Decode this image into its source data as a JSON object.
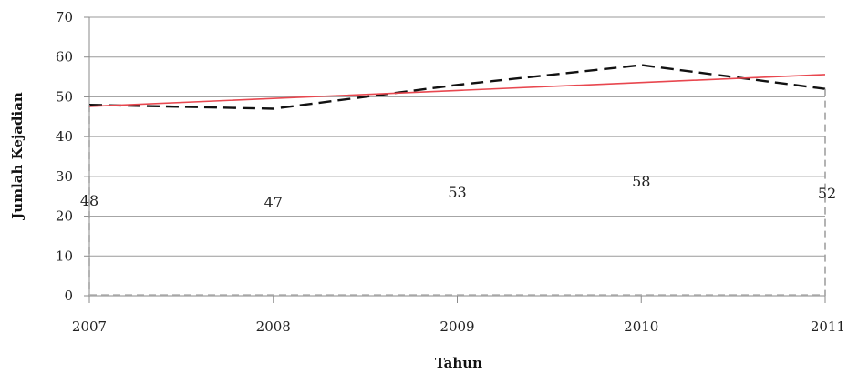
{
  "chart_data": {
    "type": "line",
    "title": "",
    "xlabel": "Tahun",
    "ylabel": "Jumlah Kejadian",
    "x": [
      "2007",
      "2008",
      "2009",
      "2010",
      "2011"
    ],
    "ylim": [
      0,
      70
    ],
    "yticks": [
      "0",
      "10",
      "20",
      "30",
      "40",
      "50",
      "60",
      "70"
    ],
    "grid": true,
    "legend": "none",
    "series": [
      {
        "style": "dashed",
        "color": "#111111",
        "values": [
          48,
          47,
          53,
          58,
          52
        ],
        "data_labels": [
          "48",
          "47",
          "53",
          "58",
          "52"
        ]
      },
      {
        "style": "solid",
        "color": "#e8474f",
        "values": [
          47.6,
          49.6,
          51.6,
          53.6,
          55.6
        ]
      }
    ]
  }
}
